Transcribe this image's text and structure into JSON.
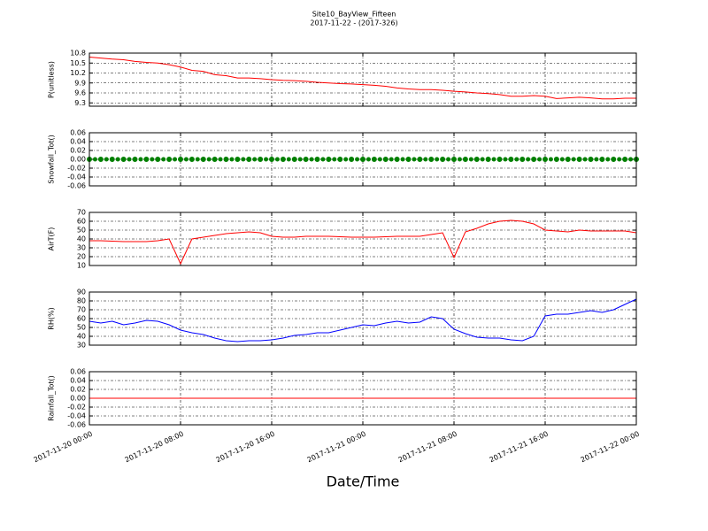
{
  "chart_data": [
    {
      "type": "line",
      "title": "Site10_BayView_Fifteen",
      "subtitle": "2017-11-22 - (2017-326)",
      "ylabel": "P(unitless)",
      "ylim": [
        9.2,
        10.8
      ],
      "yticks": [
        9.3,
        9.6,
        9.9,
        10.2,
        10.5,
        10.8
      ],
      "grid": true,
      "series": [
        {
          "color": "#ff0000",
          "values": [
            10.68,
            10.65,
            10.62,
            10.6,
            10.55,
            10.52,
            10.5,
            10.45,
            10.38,
            10.28,
            10.25,
            10.15,
            10.12,
            10.05,
            10.05,
            10.03,
            10.0,
            9.98,
            9.97,
            9.95,
            9.92,
            9.9,
            9.88,
            9.87,
            9.85,
            9.83,
            9.8,
            9.75,
            9.72,
            9.7,
            9.7,
            9.68,
            9.65,
            9.63,
            9.6,
            9.58,
            9.55,
            9.5,
            9.5,
            9.52,
            9.5,
            9.43,
            9.45,
            9.47,
            9.45,
            9.42,
            9.42,
            9.44,
            9.44
          ]
        }
      ]
    },
    {
      "type": "scatter",
      "ylabel": "Snowfall_Tot()",
      "ylim": [
        -0.06,
        0.06
      ],
      "yticks": [
        -0.06,
        -0.04,
        -0.02,
        {
          "value": 0,
          "label": "0.00"
        },
        0.02,
        0.04,
        0.06
      ],
      "grid": true,
      "series": [
        {
          "color": "#008000",
          "values": [
            0,
            0,
            0,
            0,
            0,
            0,
            0,
            0,
            0,
            0,
            0,
            0,
            0,
            0,
            0,
            0,
            0,
            0,
            0,
            0,
            0,
            0,
            0,
            0,
            0,
            0,
            0,
            0,
            0,
            0,
            0,
            0,
            0,
            0,
            0,
            0,
            0,
            0,
            0,
            0,
            0,
            0,
            0,
            0,
            0,
            0,
            0,
            0,
            0
          ]
        }
      ]
    },
    {
      "type": "line",
      "ylabel": "AirT(F)",
      "ylim": [
        10,
        70
      ],
      "yticks": [
        10,
        20,
        30,
        40,
        50,
        60,
        70
      ],
      "grid": true,
      "series": [
        {
          "color": "#ff0000",
          "values": [
            38,
            38,
            37.5,
            37,
            37,
            37,
            38,
            40,
            12,
            40,
            42,
            44,
            46,
            47,
            48,
            47,
            43,
            42,
            42,
            43,
            43,
            43,
            42.5,
            42,
            42,
            42,
            42.5,
            43,
            43,
            43,
            45,
            47,
            19,
            48,
            52,
            57,
            60,
            61,
            60,
            57,
            50,
            49,
            48,
            50,
            49,
            49,
            49,
            49,
            47
          ]
        }
      ]
    },
    {
      "type": "line",
      "ylabel": "RH(%)",
      "ylim": [
        30,
        90
      ],
      "yticks": [
        30,
        40,
        50,
        60,
        70,
        80,
        90
      ],
      "grid": true,
      "series": [
        {
          "color": "#0000ff",
          "values": [
            57,
            55,
            57,
            53,
            55,
            58,
            57,
            53,
            47,
            44,
            42,
            38,
            35,
            34,
            35,
            35,
            36,
            38,
            41,
            42,
            44,
            44,
            47,
            50,
            53,
            52,
            55,
            57,
            55,
            56,
            62,
            60,
            48,
            43,
            39,
            38,
            38,
            36,
            35,
            40,
            63,
            65,
            65,
            67,
            69,
            67,
            70,
            76,
            82
          ]
        }
      ]
    },
    {
      "type": "line",
      "ylabel": "Rainfall_Tot()",
      "xlabel": "Date/Time",
      "ylim": [
        -0.06,
        0.06
      ],
      "yticks": [
        -0.06,
        -0.04,
        -0.02,
        {
          "value": 0,
          "label": "0.00"
        },
        0.02,
        0.04,
        0.06
      ],
      "grid": true,
      "xlim": [
        "2017-11-20 00:00",
        "2017-11-22 00:00"
      ],
      "xticks": [
        "2017-11-20 00:00",
        "2017-11-20 08:00",
        "2017-11-20 16:00",
        "2017-11-21 00:00",
        "2017-11-21 08:00",
        "2017-11-21 16:00",
        "2017-11-22 00:00"
      ],
      "x": [
        "2017-11-20 00:00",
        "2017-11-20 01:00",
        "2017-11-20 02:00",
        "2017-11-20 03:00",
        "2017-11-20 04:00",
        "2017-11-20 05:00",
        "2017-11-20 06:00",
        "2017-11-20 07:00",
        "2017-11-20 08:00",
        "2017-11-20 09:00",
        "2017-11-20 10:00",
        "2017-11-20 11:00",
        "2017-11-20 12:00",
        "2017-11-20 13:00",
        "2017-11-20 14:00",
        "2017-11-20 15:00",
        "2017-11-20 16:00",
        "2017-11-20 17:00",
        "2017-11-20 18:00",
        "2017-11-20 19:00",
        "2017-11-20 20:00",
        "2017-11-20 21:00",
        "2017-11-20 22:00",
        "2017-11-20 23:00",
        "2017-11-21 00:00",
        "2017-11-21 01:00",
        "2017-11-21 02:00",
        "2017-11-21 03:00",
        "2017-11-21 04:00",
        "2017-11-21 05:00",
        "2017-11-21 06:00",
        "2017-11-21 07:00",
        "2017-11-21 08:00",
        "2017-11-21 09:00",
        "2017-11-21 10:00",
        "2017-11-21 11:00",
        "2017-11-21 12:00",
        "2017-11-21 13:00",
        "2017-11-21 14:00",
        "2017-11-21 15:00",
        "2017-11-21 16:00",
        "2017-11-21 17:00",
        "2017-11-21 18:00",
        "2017-11-21 19:00",
        "2017-11-21 20:00",
        "2017-11-21 21:00",
        "2017-11-21 22:00",
        "2017-11-21 23:00",
        "2017-11-22 00:00"
      ],
      "series": [
        {
          "color": "#ff0000",
          "values": [
            0,
            0,
            0,
            0,
            0,
            0,
            0,
            0,
            0,
            0,
            0,
            0,
            0,
            0,
            0,
            0,
            0,
            0,
            0,
            0,
            0,
            0,
            0,
            0,
            0,
            0,
            0,
            0,
            0,
            0,
            0,
            0,
            0,
            0,
            0,
            0,
            0,
            0,
            0,
            0,
            0,
            0,
            0,
            0,
            0,
            0,
            0,
            0,
            0
          ]
        }
      ]
    }
  ]
}
